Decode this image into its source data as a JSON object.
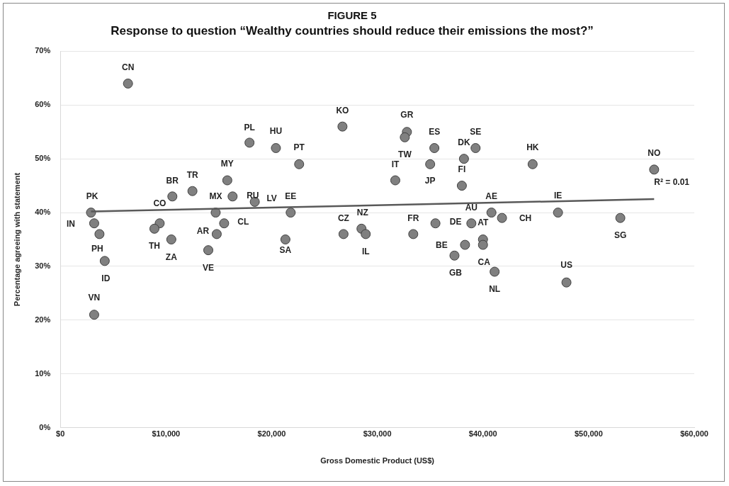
{
  "chart_data": {
    "type": "scatter",
    "title": "FIGURE 5",
    "subtitle": "Response to question “Wealthy countries should reduce their emissions the most?”",
    "xlabel": "Gross Domestic Product (US$)",
    "ylabel": "Percentage agreeing with statement",
    "xlim": [
      0,
      60000
    ],
    "xticks": [
      {
        "value": 0,
        "label": "$0"
      },
      {
        "value": 10000,
        "label": "$10,000"
      },
      {
        "value": 20000,
        "label": "$20,000"
      },
      {
        "value": 30000,
        "label": "$30,000"
      },
      {
        "value": 40000,
        "label": "$40,000"
      },
      {
        "value": 50000,
        "label": "$50,000"
      },
      {
        "value": 60000,
        "label": "$60,000"
      }
    ],
    "ylim": [
      0,
      70
    ],
    "yticks": [
      {
        "value": 0,
        "label": "0%"
      },
      {
        "value": 10,
        "label": "10%"
      },
      {
        "value": 20,
        "label": "20%"
      },
      {
        "value": 30,
        "label": "30%"
      },
      {
        "value": 40,
        "label": "40%"
      },
      {
        "value": 50,
        "label": "50%"
      },
      {
        "value": 60,
        "label": "60%"
      },
      {
        "value": 70,
        "label": "70%"
      }
    ],
    "grid": "y",
    "legend": false,
    "marker": "circle",
    "series": [
      {
        "color": "#808080",
        "x": [
          6400,
          17900,
          15800,
          10600,
          12500,
          14700,
          16300,
          18400,
          2900,
          3200,
          3700,
          4200,
          3200,
          9400,
          8900,
          10500,
          15500,
          14800,
          14000,
          20400,
          22600,
          26700,
          32800,
          32600,
          35400,
          39300,
          38200,
          35000,
          31700,
          38000,
          21800,
          21300,
          26800,
          28500,
          28900,
          33400,
          35500,
          38900,
          38300,
          37300,
          40000,
          40000,
          40800,
          41800,
          44700,
          56200,
          47100,
          53000,
          41100,
          47900
        ],
        "values": [
          64,
          53,
          46,
          43,
          44,
          40,
          43,
          42,
          40,
          38,
          36,
          31,
          21,
          38,
          37,
          35,
          38,
          36,
          33,
          52,
          49,
          56,
          55,
          54,
          52,
          52,
          50,
          49,
          46,
          45,
          40,
          35,
          36,
          37,
          36,
          36,
          38,
          38,
          34,
          32,
          35,
          34,
          40,
          39,
          49,
          48,
          40,
          39,
          29,
          27
        ]
      },
      {
        "type": "line",
        "marker": "none",
        "color": "#595959",
        "x": [
          2900,
          56200
        ],
        "values": [
          40.2,
          42.5
        ]
      }
    ],
    "annotations": [
      {
        "text": "CN",
        "x": 6400,
        "y": 64
      },
      {
        "text": "PL",
        "x": 17900,
        "y": 53
      },
      {
        "text": "HU",
        "x": 20400,
        "y": 52
      },
      {
        "text": "PT",
        "x": 22600,
        "y": 49
      },
      {
        "text": "KO",
        "x": 26700,
        "y": 56
      },
      {
        "text": "GR",
        "x": 32800,
        "y": 55
      },
      {
        "text": "TW",
        "x": 32600,
        "y": 54
      },
      {
        "text": "ES",
        "x": 35400,
        "y": 52
      },
      {
        "text": "SE",
        "x": 39300,
        "y": 52
      },
      {
        "text": "DK",
        "x": 38200,
        "y": 50
      },
      {
        "text": "IT",
        "x": 31700,
        "y": 46
      },
      {
        "text": "JP",
        "x": 35000,
        "y": 49
      },
      {
        "text": "FI",
        "x": 38000,
        "y": 45
      },
      {
        "text": "HK",
        "x": 44700,
        "y": 49
      },
      {
        "text": "NO",
        "x": 56200,
        "y": 48
      },
      {
        "text": "R² = 0.01",
        "x": 56200,
        "y": 42.5
      },
      {
        "text": "MY",
        "x": 15800,
        "y": 46
      },
      {
        "text": "BR",
        "x": 10600,
        "y": 43
      },
      {
        "text": "TR",
        "x": 12500,
        "y": 44
      },
      {
        "text": "PK",
        "x": 2900,
        "y": 40
      },
      {
        "text": "IN",
        "x": 3200,
        "y": 38
      },
      {
        "text": "PH",
        "x": 4200,
        "y": 31
      },
      {
        "text": "ID",
        "x": 4200,
        "y": 31
      },
      {
        "text": "VN",
        "x": 3200,
        "y": 21
      },
      {
        "text": "CO",
        "x": 9400,
        "y": 38
      },
      {
        "text": "TH",
        "x": 8900,
        "y": 37
      },
      {
        "text": "ZA",
        "x": 10500,
        "y": 35
      },
      {
        "text": "MX",
        "x": 14700,
        "y": 40
      },
      {
        "text": "RU",
        "x": 16300,
        "y": 43
      },
      {
        "text": "LV",
        "x": 18400,
        "y": 42
      },
      {
        "text": "CL",
        "x": 15500,
        "y": 38
      },
      {
        "text": "AR",
        "x": 14800,
        "y": 36
      },
      {
        "text": "VE",
        "x": 14000,
        "y": 33
      },
      {
        "text": "EE",
        "x": 21800,
        "y": 40
      },
      {
        "text": "SA",
        "x": 21300,
        "y": 35
      },
      {
        "text": "CZ",
        "x": 26800,
        "y": 36
      },
      {
        "text": "NZ",
        "x": 28500,
        "y": 37
      },
      {
        "text": "IL",
        "x": 28900,
        "y": 36
      },
      {
        "text": "FR",
        "x": 33400,
        "y": 36
      },
      {
        "text": "DE",
        "x": 35500,
        "y": 38
      },
      {
        "text": "AU",
        "x": 38900,
        "y": 38
      },
      {
        "text": "AT",
        "x": 40000,
        "y": 35
      },
      {
        "text": "BE",
        "x": 38300,
        "y": 34
      },
      {
        "text": "GB",
        "x": 37300,
        "y": 32
      },
      {
        "text": "CA",
        "x": 40000,
        "y": 34
      },
      {
        "text": "AE",
        "x": 40800,
        "y": 40
      },
      {
        "text": "CH",
        "x": 41800,
        "y": 39
      },
      {
        "text": "IE",
        "x": 47100,
        "y": 40
      },
      {
        "text": "SG",
        "x": 53000,
        "y": 39
      },
      {
        "text": "NL",
        "x": 41100,
        "y": 29
      },
      {
        "text": "US",
        "x": 47900,
        "y": 27
      }
    ]
  }
}
